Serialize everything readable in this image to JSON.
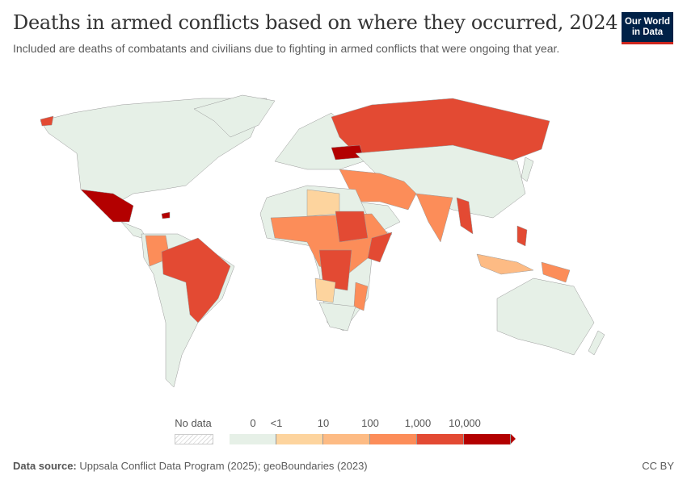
{
  "header": {
    "title": "Deaths in armed conflicts based on where they occurred, 2024",
    "subtitle": "Included are deaths of combatants and civilians due to fighting in armed conflicts that were ongoing that year."
  },
  "logo": {
    "line1": "Our World",
    "line2": "in Data"
  },
  "legend": {
    "no_data_label": "No data",
    "tick_labels": [
      "0",
      "<1",
      "10",
      "100",
      "1,000",
      "10,000"
    ],
    "bins": [
      {
        "range": "0",
        "color": "#e6f0e7"
      },
      {
        "range": "<1–10",
        "color": "#fdd49e"
      },
      {
        "range": "10–100",
        "color": "#fdbb84"
      },
      {
        "range": "100–1,000",
        "color": "#fc8d59"
      },
      {
        "range": "1,000–10,000",
        "color": "#e34a33"
      },
      {
        "range": ">10,000",
        "color": "#b30000"
      }
    ]
  },
  "footer": {
    "source_label": "Data source:",
    "source_text": "Uppsala Conflict Data Program (2025); geoBoundaries (2023)",
    "license": "CC BY"
  }
}
